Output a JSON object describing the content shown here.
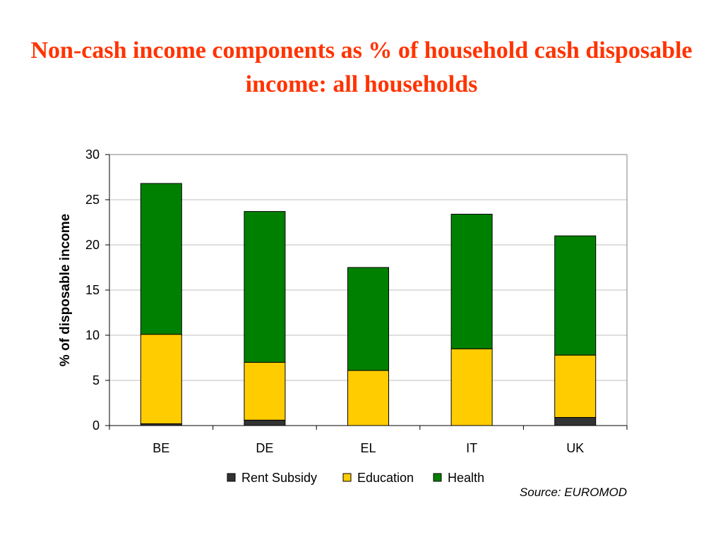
{
  "title": "Non-cash income components as % of household cash disposable income: all households",
  "source": "Source: EUROMOD",
  "colors": {
    "title": "#ff3300",
    "rent_subsidy": "#333333",
    "education": "#ffcc00",
    "health": "#008000",
    "grid": "#bfbfbf",
    "plot_border": "#808080"
  },
  "chart_data": {
    "type": "bar",
    "stacked": true,
    "categories": [
      "BE",
      "DE",
      "EL",
      "IT",
      "UK"
    ],
    "series": [
      {
        "name": "Rent Subsidy",
        "values": [
          0.2,
          0.6,
          0.0,
          0.0,
          0.9
        ]
      },
      {
        "name": "Education",
        "values": [
          9.9,
          6.4,
          6.1,
          8.5,
          6.9
        ]
      },
      {
        "name": "Health",
        "values": [
          16.7,
          16.7,
          11.4,
          14.9,
          13.2
        ]
      }
    ],
    "ylabel": "% of disposable income",
    "xlabel": "",
    "ylim": [
      0,
      30
    ],
    "yticks": [
      0,
      5,
      10,
      15,
      20,
      25,
      30
    ],
    "grid": true,
    "legend": "bottom"
  }
}
